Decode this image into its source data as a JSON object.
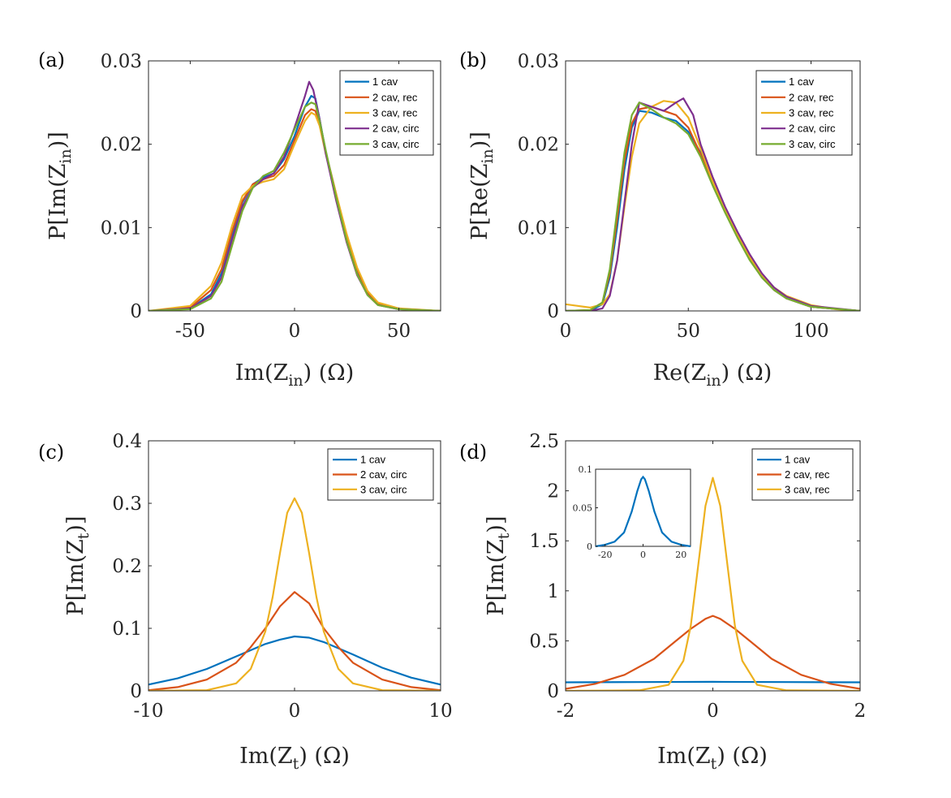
{
  "colors": {
    "c1": "#0072BD",
    "c2": "#D95319",
    "c3": "#EDB120",
    "c4": "#7E2F8E",
    "c5": "#77AC30"
  },
  "chart_data": [
    {
      "panel": "a",
      "panel_label": "(a)",
      "type": "line",
      "xlabel_main": "Im(Z",
      "xlabel_sub": "in",
      "xlabel_tail": ") (Ω)",
      "ylabel_main": "P[Im(Z",
      "ylabel_sub": "in",
      "ylabel_tail": ")]",
      "xlim": [
        -70,
        70
      ],
      "ylim": [
        0,
        0.03
      ],
      "xticks": [
        -50,
        0,
        50
      ],
      "xtick_labels": [
        "-50",
        "0",
        "50"
      ],
      "yticks": [
        0,
        0.01,
        0.02,
        0.03
      ],
      "ytick_labels": [
        "0",
        "0.01",
        "0.02",
        "0.03"
      ],
      "legend_position": "top-right",
      "series": [
        {
          "name": "1 cav",
          "color": "#0072BD",
          "x": [
            -70,
            -50,
            -40,
            -35,
            -30,
            -25,
            -20,
            -15,
            -10,
            -5,
            0,
            5,
            8,
            10,
            12,
            15,
            20,
            25,
            30,
            35,
            40,
            50,
            70
          ],
          "y": [
            0,
            0.0003,
            0.002,
            0.0045,
            0.009,
            0.013,
            0.0152,
            0.016,
            0.0165,
            0.0182,
            0.021,
            0.0245,
            0.0258,
            0.0255,
            0.023,
            0.019,
            0.0135,
            0.0085,
            0.0045,
            0.002,
            0.0008,
            0.0002,
            0
          ]
        },
        {
          "name": "2 cav, rec",
          "color": "#D95319",
          "x": [
            -70,
            -50,
            -40,
            -35,
            -30,
            -25,
            -20,
            -15,
            -10,
            -5,
            0,
            5,
            8,
            10,
            12,
            15,
            20,
            25,
            30,
            35,
            40,
            50,
            70
          ],
          "y": [
            0,
            0.0004,
            0.0025,
            0.005,
            0.0095,
            0.0132,
            0.0152,
            0.0158,
            0.0162,
            0.0175,
            0.0205,
            0.0235,
            0.0242,
            0.024,
            0.0225,
            0.019,
            0.014,
            0.009,
            0.005,
            0.0022,
            0.0009,
            0.0002,
            0
          ]
        },
        {
          "name": "3 cav, rec",
          "color": "#EDB120",
          "x": [
            -70,
            -50,
            -40,
            -35,
            -30,
            -25,
            -20,
            -15,
            -10,
            -5,
            0,
            5,
            8,
            10,
            12,
            15,
            20,
            25,
            30,
            35,
            40,
            50,
            70
          ],
          "y": [
            0,
            0.0006,
            0.003,
            0.0058,
            0.0102,
            0.0138,
            0.015,
            0.0155,
            0.0158,
            0.017,
            0.02,
            0.0228,
            0.0238,
            0.0235,
            0.0222,
            0.0188,
            0.014,
            0.0092,
            0.0052,
            0.0024,
            0.001,
            0.0003,
            0
          ]
        },
        {
          "name": "2 cav, circ",
          "color": "#7E2F8E",
          "x": [
            -70,
            -50,
            -40,
            -35,
            -30,
            -25,
            -20,
            -15,
            -10,
            -5,
            0,
            5,
            7,
            9,
            12,
            15,
            20,
            25,
            30,
            35,
            40,
            50,
            70
          ],
          "y": [
            0,
            0.0003,
            0.0018,
            0.004,
            0.0085,
            0.0125,
            0.0148,
            0.0158,
            0.0165,
            0.0185,
            0.022,
            0.0258,
            0.0275,
            0.0265,
            0.023,
            0.0188,
            0.0132,
            0.0082,
            0.0043,
            0.0019,
            0.0007,
            0.0002,
            0
          ]
        },
        {
          "name": "3 cav, circ",
          "color": "#77AC30",
          "x": [
            -70,
            -50,
            -40,
            -35,
            -30,
            -25,
            -20,
            -15,
            -10,
            -5,
            0,
            5,
            8,
            10,
            12,
            15,
            20,
            25,
            30,
            35,
            40,
            50,
            70
          ],
          "y": [
            0,
            0.0002,
            0.0015,
            0.0035,
            0.0078,
            0.012,
            0.0148,
            0.0162,
            0.0168,
            0.019,
            0.0218,
            0.0245,
            0.025,
            0.0248,
            0.0228,
            0.0192,
            0.0136,
            0.0084,
            0.0044,
            0.0019,
            0.0007,
            0.0002,
            0
          ]
        }
      ]
    },
    {
      "panel": "b",
      "panel_label": "(b)",
      "type": "line",
      "xlabel_main": "Re(Z",
      "xlabel_sub": "in",
      "xlabel_tail": ") (Ω)",
      "ylabel_main": "P[Re(Z",
      "ylabel_sub": "in",
      "ylabel_tail": ")]",
      "xlim": [
        0,
        120
      ],
      "ylim": [
        0,
        0.03
      ],
      "xticks": [
        0,
        50,
        100
      ],
      "xtick_labels": [
        "0",
        "50",
        "100"
      ],
      "yticks": [
        0,
        0.01,
        0.02,
        0.03
      ],
      "ytick_labels": [
        "0",
        "0.01",
        "0.02",
        "0.03"
      ],
      "legend_position": "top-right",
      "series": [
        {
          "name": "1 cav",
          "color": "#0072BD",
          "x": [
            0,
            10,
            15,
            18,
            21,
            24,
            27,
            30,
            35,
            40,
            45,
            50,
            55,
            60,
            65,
            70,
            75,
            80,
            85,
            90,
            100,
            120
          ],
          "y": [
            0,
            0,
            0.0008,
            0.004,
            0.01,
            0.017,
            0.022,
            0.024,
            0.0238,
            0.0232,
            0.0228,
            0.0215,
            0.019,
            0.0152,
            0.012,
            0.009,
            0.0062,
            0.004,
            0.0025,
            0.0015,
            0.0005,
            0
          ]
        },
        {
          "name": "2 cav, rec",
          "color": "#D95319",
          "x": [
            0,
            10,
            15,
            18,
            21,
            24,
            27,
            30,
            35,
            40,
            45,
            50,
            55,
            60,
            65,
            70,
            75,
            80,
            85,
            90,
            100,
            120
          ],
          "y": [
            0,
            0.0001,
            0.001,
            0.0045,
            0.011,
            0.018,
            0.0225,
            0.0242,
            0.0245,
            0.024,
            0.0235,
            0.022,
            0.0188,
            0.0152,
            0.012,
            0.009,
            0.0062,
            0.004,
            0.0025,
            0.0015,
            0.0005,
            0
          ]
        },
        {
          "name": "3 cav, rec",
          "color": "#EDB120",
          "x": [
            0,
            5,
            10,
            15,
            18,
            21,
            24,
            27,
            30,
            35,
            40,
            45,
            50,
            55,
            60,
            65,
            70,
            75,
            80,
            85,
            90,
            100,
            110,
            120
          ],
          "y": [
            0.0008,
            0.0006,
            0.0004,
            0.0008,
            0.002,
            0.006,
            0.0125,
            0.0185,
            0.0225,
            0.0245,
            0.0252,
            0.025,
            0.0232,
            0.0195,
            0.0155,
            0.0122,
            0.0092,
            0.0065,
            0.0043,
            0.0028,
            0.0018,
            0.0007,
            0.0002,
            0
          ]
        },
        {
          "name": "2 cav, circ",
          "color": "#7E2F8E",
          "x": [
            0,
            10,
            15,
            18,
            21,
            24,
            27,
            30,
            35,
            40,
            45,
            48,
            52,
            55,
            60,
            65,
            70,
            75,
            80,
            85,
            90,
            100,
            120
          ],
          "y": [
            0,
            0,
            0.0003,
            0.0018,
            0.006,
            0.013,
            0.02,
            0.025,
            0.0245,
            0.024,
            0.025,
            0.0255,
            0.0235,
            0.02,
            0.016,
            0.0125,
            0.0095,
            0.0068,
            0.0045,
            0.0028,
            0.0017,
            0.0006,
            0
          ]
        },
        {
          "name": "3 cav, circ",
          "color": "#77AC30",
          "x": [
            0,
            10,
            15,
            18,
            21,
            24,
            27,
            30,
            35,
            40,
            45,
            50,
            55,
            60,
            65,
            70,
            75,
            80,
            85,
            90,
            100,
            120
          ],
          "y": [
            0,
            0.0001,
            0.001,
            0.005,
            0.012,
            0.019,
            0.0235,
            0.025,
            0.0242,
            0.0232,
            0.0225,
            0.0212,
            0.0185,
            0.015,
            0.0118,
            0.0088,
            0.0061,
            0.004,
            0.0025,
            0.0015,
            0.0005,
            0
          ]
        }
      ]
    },
    {
      "panel": "c",
      "panel_label": "(c)",
      "type": "line",
      "xlabel_main": "Im(Z",
      "xlabel_sub": "t",
      "xlabel_tail": ") (Ω)",
      "ylabel_main": "P[Im(Z",
      "ylabel_sub": "t",
      "ylabel_tail": ")]",
      "xlim": [
        -10,
        10
      ],
      "ylim": [
        0,
        0.4
      ],
      "xticks": [
        -10,
        0,
        10
      ],
      "xtick_labels": [
        "-10",
        "0",
        "10"
      ],
      "yticks": [
        0,
        0.1,
        0.2,
        0.3,
        0.4
      ],
      "ytick_labels": [
        "0",
        "0.1",
        "0.2",
        "0.3",
        "0.4"
      ],
      "legend_position": "top-right",
      "series": [
        {
          "name": "1 cav",
          "color": "#0072BD",
          "x": [
            -10,
            -8,
            -6,
            -4,
            -2,
            -1,
            0,
            1,
            2,
            4,
            6,
            8,
            10
          ],
          "y": [
            0.01,
            0.02,
            0.035,
            0.055,
            0.075,
            0.082,
            0.087,
            0.085,
            0.078,
            0.058,
            0.037,
            0.021,
            0.01
          ]
        },
        {
          "name": "2 cav, circ",
          "color": "#D95319",
          "x": [
            -10,
            -8,
            -6,
            -4,
            -3,
            -2,
            -1,
            0,
            1,
            2,
            3,
            4,
            6,
            8,
            10
          ],
          "y": [
            0.001,
            0.006,
            0.018,
            0.045,
            0.07,
            0.1,
            0.135,
            0.158,
            0.14,
            0.1,
            0.07,
            0.045,
            0.018,
            0.006,
            0.001
          ]
        },
        {
          "name": "3 cav, circ",
          "color": "#EDB120",
          "x": [
            -10,
            -6,
            -4,
            -3,
            -2,
            -1.5,
            -1,
            -0.5,
            0,
            0.5,
            1,
            1.5,
            2,
            3,
            4,
            6,
            10
          ],
          "y": [
            0,
            0.001,
            0.012,
            0.035,
            0.095,
            0.15,
            0.22,
            0.285,
            0.308,
            0.285,
            0.22,
            0.15,
            0.095,
            0.035,
            0.012,
            0.001,
            0
          ]
        }
      ]
    },
    {
      "panel": "d",
      "panel_label": "(d)",
      "type": "line",
      "xlabel_main": "Im(Z",
      "xlabel_sub": "t",
      "xlabel_tail": ") (Ω)",
      "ylabel_main": "P[Im(Z",
      "ylabel_sub": "t",
      "ylabel_tail": ")]",
      "xlim": [
        -2,
        2
      ],
      "ylim": [
        0,
        2.5
      ],
      "xticks": [
        -2,
        0,
        2
      ],
      "xtick_labels": [
        "-2",
        "0",
        "2"
      ],
      "yticks": [
        0,
        0.5,
        1,
        1.5,
        2,
        2.5
      ],
      "ytick_labels": [
        "0",
        "0.5",
        "1",
        "1.5",
        "2",
        "2.5"
      ],
      "legend_position": "top-right",
      "series": [
        {
          "name": "1 cav",
          "color": "#0072BD",
          "x": [
            -2,
            -1,
            0,
            1,
            2
          ],
          "y": [
            0.085,
            0.088,
            0.09,
            0.088,
            0.085
          ]
        },
        {
          "name": "2 cav, rec",
          "color": "#D95319",
          "x": [
            -2,
            -1.6,
            -1.2,
            -0.8,
            -0.5,
            -0.3,
            -0.1,
            0,
            0.1,
            0.3,
            0.5,
            0.8,
            1.2,
            1.6,
            2
          ],
          "y": [
            0.02,
            0.07,
            0.16,
            0.32,
            0.5,
            0.62,
            0.72,
            0.75,
            0.72,
            0.62,
            0.5,
            0.32,
            0.16,
            0.07,
            0.02
          ]
        },
        {
          "name": "3 cav, rec",
          "color": "#EDB120",
          "x": [
            -2,
            -1,
            -0.6,
            -0.4,
            -0.3,
            -0.2,
            -0.1,
            0,
            0.1,
            0.2,
            0.3,
            0.4,
            0.6,
            1,
            2
          ],
          "y": [
            0,
            0.005,
            0.06,
            0.3,
            0.65,
            1.25,
            1.85,
            2.13,
            1.85,
            1.25,
            0.65,
            0.3,
            0.06,
            0.005,
            0
          ]
        }
      ],
      "inset": {
        "xlim": [
          -25,
          25
        ],
        "ylim": [
          0,
          0.1
        ],
        "xticks": [
          -20,
          0,
          20
        ],
        "xtick_labels": [
          "-20",
          "0",
          "20"
        ],
        "yticks": [
          0,
          0.05,
          0.1
        ],
        "ytick_labels": [
          "0",
          "0.05",
          "0.1"
        ],
        "series": [
          {
            "name": "1 cav",
            "color": "#0072BD",
            "x": [
              -25,
              -20,
              -15,
              -10,
              -6,
              -3,
              -1,
              0,
              1,
              3,
              6,
              10,
              15,
              20,
              25
            ],
            "y": [
              0,
              0.002,
              0.006,
              0.018,
              0.045,
              0.072,
              0.087,
              0.09,
              0.087,
              0.072,
              0.045,
              0.018,
              0.006,
              0.002,
              0
            ]
          }
        ]
      }
    }
  ]
}
